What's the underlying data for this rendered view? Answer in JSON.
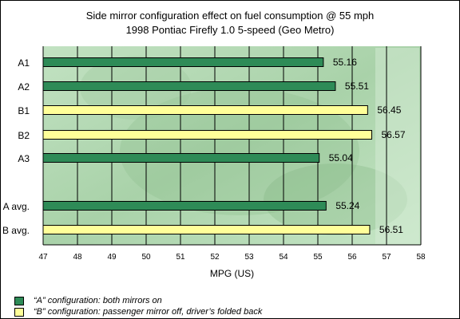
{
  "chart_data": {
    "type": "bar",
    "orientation": "horizontal",
    "title": "Side mirror configuration effect on fuel consumption @ 55 mph",
    "subtitle": "1998 Pontiac Firefly 1.0 5-speed (Geo Metro)",
    "xlabel": "MPG (US)",
    "ylabel": "",
    "xlim": [
      47,
      58
    ],
    "x_ticks": [
      "47",
      "48",
      "49",
      "50",
      "51",
      "52",
      "53",
      "54",
      "55",
      "56",
      "57",
      "58"
    ],
    "grid": "vertical gridlines at each integer MPG",
    "legend_position": "bottom",
    "categories": [
      "A1",
      "A2",
      "B1",
      "B2",
      "A3",
      "A avg.",
      "B avg."
    ],
    "values": [
      55.16,
      55.51,
      56.45,
      56.57,
      55.04,
      55.24,
      56.51
    ],
    "value_labels": [
      "55.16",
      "55.51",
      "56.45",
      "56.57",
      "55.04",
      "55.24",
      "56.51"
    ],
    "groups": [
      "A",
      "A",
      "B",
      "B",
      "A",
      "A",
      "B"
    ],
    "legend": [
      {
        "key": "A",
        "label": "“A” configuration: both mirrors on",
        "color": "#2e8b57"
      },
      {
        "key": "B",
        "label": "“B” configuration: passenger mirror off, driver’s folded back",
        "color": "#ffff99"
      }
    ],
    "colors": {
      "A": "#2e8b57",
      "B": "#ffff99",
      "plot_background": "#b8dcb8"
    }
  }
}
